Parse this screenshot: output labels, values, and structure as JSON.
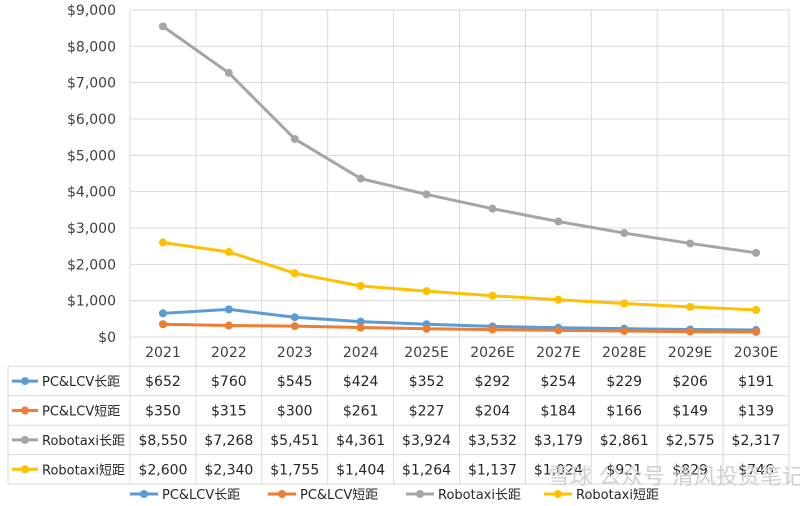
{
  "chart_data": {
    "type": "line",
    "categories": [
      "2021",
      "2022",
      "2023",
      "2024",
      "2025E",
      "2026E",
      "2027E",
      "2028E",
      "2029E",
      "2030E"
    ],
    "ylim": [
      0,
      9000
    ],
    "yticks": [
      0,
      1000,
      2000,
      3000,
      4000,
      5000,
      6000,
      7000,
      8000,
      9000
    ],
    "ytick_labels": [
      "$0",
      "$1,000",
      "$2,000",
      "$3,000",
      "$4,000",
      "$5,000",
      "$6,000",
      "$7,000",
      "$8,000",
      "$9,000"
    ],
    "grid": true,
    "legend_position": "bottom",
    "series": [
      {
        "name": "PC&LCV长距",
        "color": "#5b9bd5",
        "values": [
          652,
          760,
          545,
          424,
          352,
          292,
          254,
          229,
          206,
          191
        ],
        "labels": [
          "$652",
          "$760",
          "$545",
          "$424",
          "$352",
          "$292",
          "$254",
          "$229",
          "$206",
          "$191"
        ]
      },
      {
        "name": "PC&LCV短距",
        "color": "#ed7d31",
        "values": [
          350,
          315,
          300,
          261,
          227,
          204,
          184,
          166,
          149,
          139
        ],
        "labels": [
          "$350",
          "$315",
          "$300",
          "$261",
          "$227",
          "$204",
          "$184",
          "$166",
          "$149",
          "$139"
        ]
      },
      {
        "name": "Robotaxi长距",
        "color": "#a5a5a5",
        "values": [
          8550,
          7268,
          5451,
          4361,
          3924,
          3532,
          3179,
          2861,
          2575,
          2317
        ],
        "labels": [
          "$8,550",
          "$7,268",
          "$5,451",
          "$4,361",
          "$3,924",
          "$3,532",
          "$3,179",
          "$2,861",
          "$2,575",
          "$2,317"
        ]
      },
      {
        "name": "Robotaxi短距",
        "color": "#ffc000",
        "values": [
          2600,
          2340,
          1755,
          1404,
          1264,
          1137,
          1024,
          921,
          829,
          746
        ],
        "labels": [
          "$2,600",
          "$2,340",
          "$1,755",
          "$1,404",
          "$1,264",
          "$1,137",
          "$1,024",
          "$921",
          "$829",
          "$746"
        ]
      }
    ]
  },
  "watermark": "雪球 公众号 清风投资笔记"
}
